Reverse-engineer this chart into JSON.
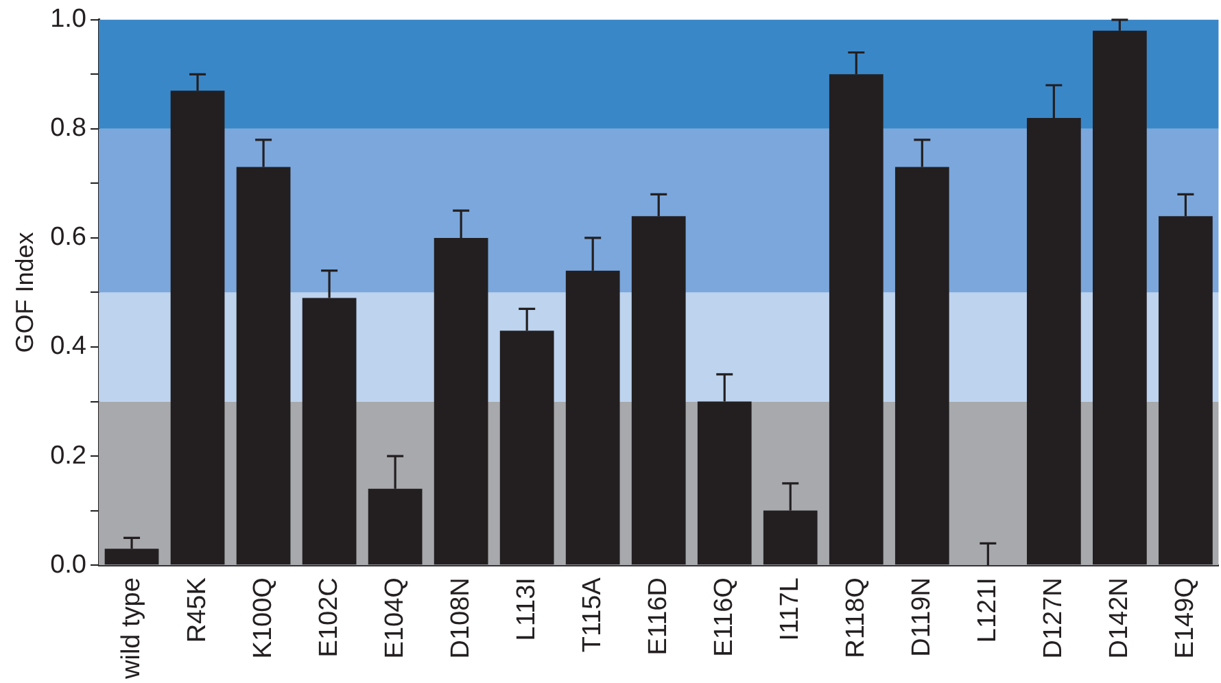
{
  "chart_data": {
    "type": "bar",
    "ylabel": "GOF Index",
    "categories": [
      "wild type",
      "R45K",
      "K100Q",
      "E102C",
      "E104Q",
      "D108N",
      "L113I",
      "T115A",
      "E116D",
      "E116Q",
      "I117L",
      "R118Q",
      "D119N",
      "L121I",
      "D127N",
      "D142N",
      "E149Q"
    ],
    "values": [
      0.03,
      0.87,
      0.73,
      0.49,
      0.14,
      0.6,
      0.43,
      0.54,
      0.64,
      0.3,
      0.1,
      0.9,
      0.73,
      0,
      0.82,
      0.98,
      0.64
    ],
    "errors": [
      [
        0.03,
        0.05
      ],
      [
        0.87,
        0.9
      ],
      [
        0.73,
        0.78
      ],
      [
        0.49,
        0.54
      ],
      [
        0.14,
        0.2
      ],
      [
        0.6,
        0.65
      ],
      [
        0.43,
        0.47
      ],
      [
        0.54,
        0.6
      ],
      [
        0.64,
        0.68
      ],
      [
        0.3,
        0.35
      ],
      [
        0.1,
        0.15
      ],
      [
        0.9,
        0.94
      ],
      [
        0.73,
        0.78
      ],
      [
        0,
        0.04
      ],
      [
        0.82,
        0.88
      ],
      [
        0.98,
        1.0
      ],
      [
        0.64,
        0.68
      ]
    ],
    "color": "#231f20",
    "ylim": [
      0,
      1
    ],
    "yticks": [
      {
        "value": 0,
        "label": "0.0"
      },
      {
        "value": 0.1,
        "label": null
      },
      {
        "value": 0.2,
        "label": "0.2"
      },
      {
        "value": 0.3,
        "label": null
      },
      {
        "value": 0.4,
        "label": "0.4"
      },
      {
        "value": 0.5,
        "label": null
      },
      {
        "value": 0.6,
        "label": "0.6"
      },
      {
        "value": 0.7,
        "label": null
      },
      {
        "value": 0.8,
        "label": "0.8"
      },
      {
        "value": 0.9,
        "label": null
      },
      {
        "value": 1,
        "label": "1.0"
      }
    ],
    "bands": [
      {
        "axis": "y",
        "from": 0,
        "to": 0.3,
        "color": "#a7a9ac"
      },
      {
        "axis": "y",
        "from": 0.3,
        "to": 0.5,
        "color": "#bdd3ee"
      },
      {
        "axis": "y",
        "from": 0.5,
        "to": 0.8,
        "color": "#7ba7dc"
      },
      {
        "axis": "y",
        "from": 0.8,
        "to": 1,
        "color": "#3a87c8"
      }
    ],
    "grid": false,
    "legend": false
  }
}
